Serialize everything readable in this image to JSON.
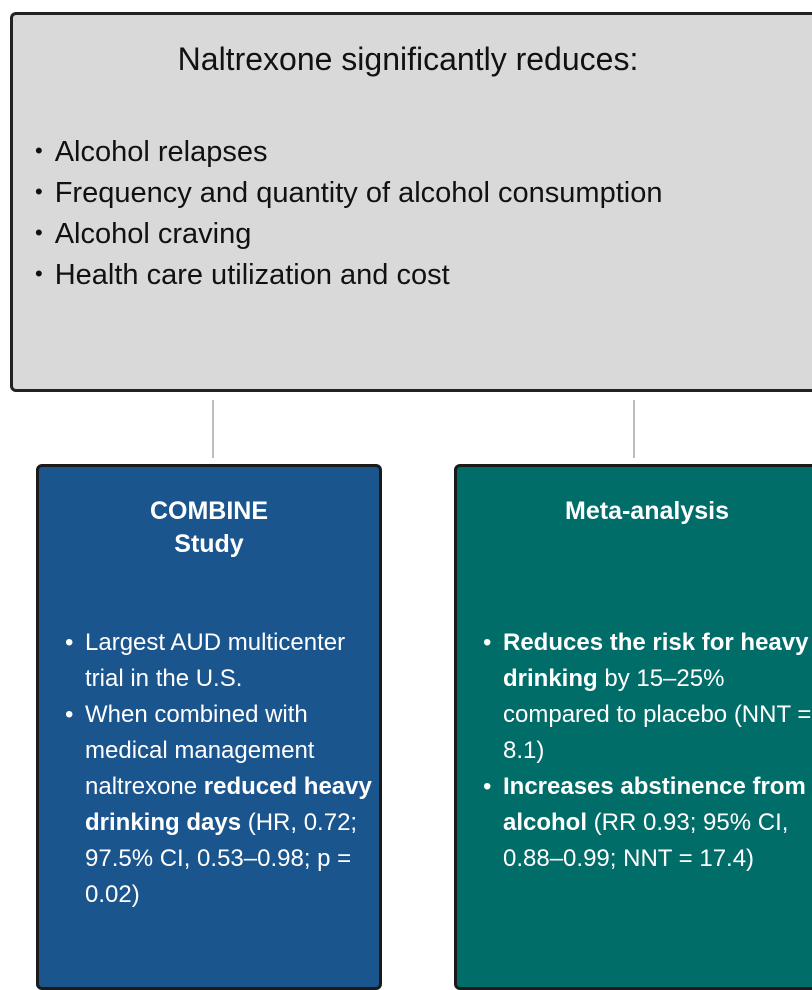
{
  "summary": {
    "title": "Naltrexone significantly reduces:",
    "bullets": [
      "Alcohol relapses",
      "Frequency and quantity of alcohol consumption",
      "Alcohol craving",
      "Health care utilization and cost"
    ]
  },
  "cards": [
    {
      "title_lines": [
        "COMBINE",
        "Study"
      ],
      "color": "#1b558e",
      "bullets": [
        [
          {
            "text": "Largest AUD multicenter trial in the U.S.",
            "bold": false
          }
        ],
        [
          {
            "text": "When combined with medical management naltrexone ",
            "bold": false
          },
          {
            "text": "reduced heavy drinking days",
            "bold": true
          },
          {
            "text": " (HR, 0.72; 97.5% CI, 0.53–0.98; p = 0.02)",
            "bold": false
          }
        ]
      ]
    },
    {
      "title_lines": [
        "Meta-analysis"
      ],
      "color": "#006d69",
      "bullets": [
        [
          {
            "text": "Reduces the risk for heavy drinking",
            "bold": true
          },
          {
            "text": " by 15–25% compared to placebo (NNT = 8.1)",
            "bold": false
          }
        ],
        [
          {
            "text": "Increases abstinence from alcohol",
            "bold": true
          },
          {
            "text": " (RR 0.93; 95% CI, 0.88–0.99; NNT = 17.4)",
            "bold": false
          }
        ]
      ]
    }
  ]
}
